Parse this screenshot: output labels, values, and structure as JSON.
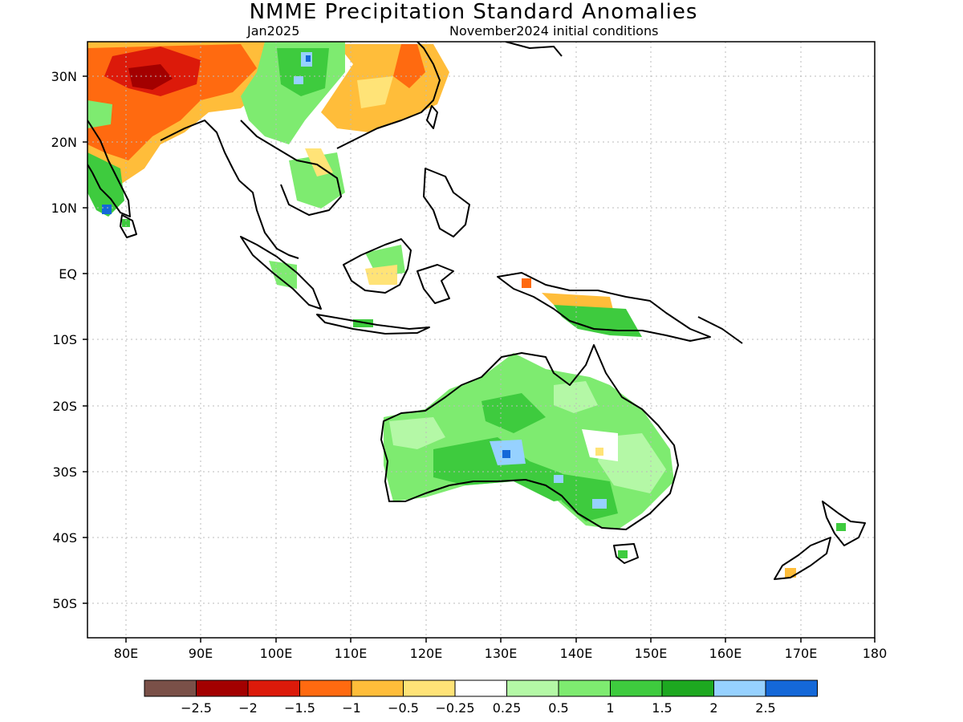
{
  "title": "NMME Precipitation Standard Anomalies",
  "valid_month": "Jan2025",
  "init_conditions": "November2024 initial conditions",
  "lat_labels": [
    "30N",
    "20N",
    "10N",
    "EQ",
    "10S",
    "20S",
    "30S",
    "40S",
    "50S"
  ],
  "lon_labels": [
    "80E",
    "90E",
    "100E",
    "110E",
    "120E",
    "130E",
    "140E",
    "150E",
    "160E",
    "170E",
    "180"
  ],
  "colorbar": {
    "colors": [
      "#7a5048",
      "#a30000",
      "#dc1a0a",
      "#ff6a10",
      "#ffbd3a",
      "#ffe377",
      "#ffffff",
      "#b4f8a6",
      "#7eeb70",
      "#3ecb3e",
      "#1da820",
      "#96d1ff",
      "#1468d8"
    ],
    "labels": [
      "-2.5",
      "-2",
      "-1.5",
      "-1",
      "-0.5",
      "-0.25",
      "0.25",
      "0.5",
      "1",
      "1.5",
      "2",
      "2.5"
    ]
  }
}
